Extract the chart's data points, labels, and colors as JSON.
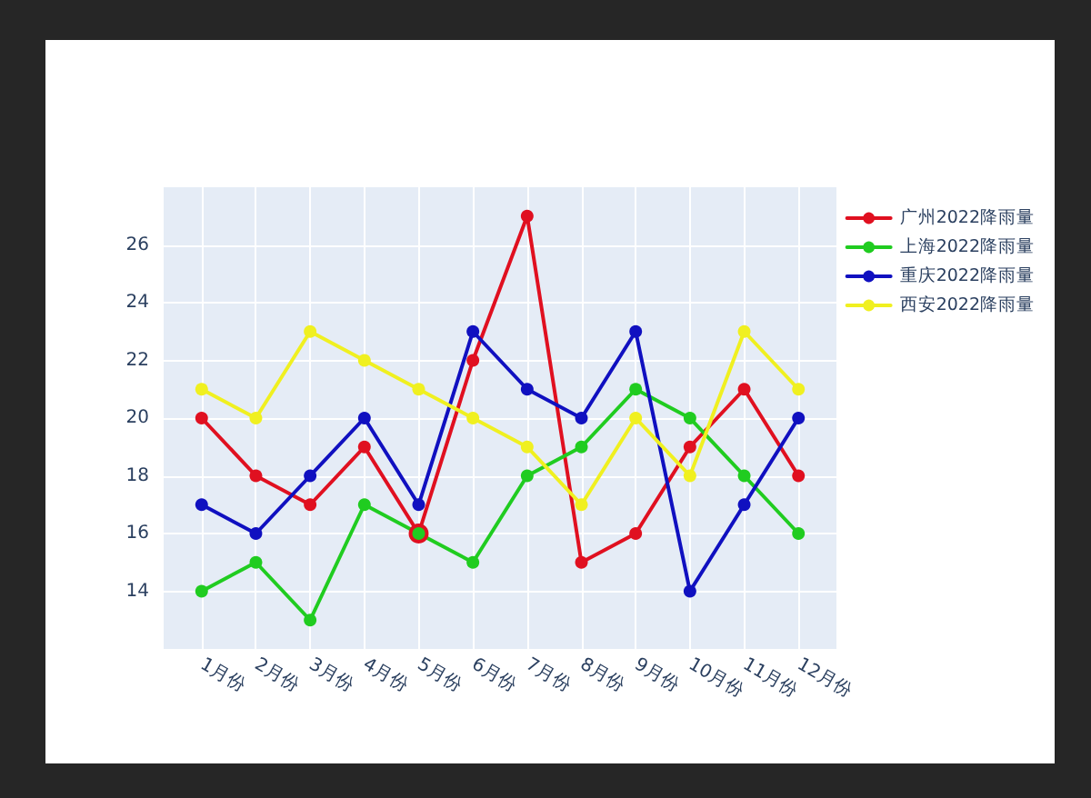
{
  "chart_data": {
    "type": "line",
    "categories": [
      "1月份",
      "2月份",
      "3月份",
      "4月份",
      "5月份",
      "6月份",
      "7月份",
      "8月份",
      "9月份",
      "10月份",
      "11月份",
      "12月份"
    ],
    "series": [
      {
        "name": "广州2022降雨量",
        "color": "#e01020",
        "values": [
          20,
          18,
          17,
          19,
          16,
          22,
          27,
          15,
          16,
          19,
          21,
          18
        ]
      },
      {
        "name": "上海2022降雨量",
        "color": "#20cc20",
        "values": [
          14,
          15,
          13,
          17,
          16,
          15,
          18,
          19,
          21,
          20,
          18,
          16
        ]
      },
      {
        "name": "重庆2022降雨量",
        "color": "#1010c0",
        "values": [
          17,
          16,
          18,
          20,
          17,
          23,
          21,
          20,
          23,
          14,
          17,
          20
        ]
      },
      {
        "name": "西安2022降雨量",
        "color": "#f0f020",
        "values": [
          21,
          20,
          23,
          22,
          21,
          20,
          19,
          17,
          20,
          18,
          23,
          21
        ]
      }
    ],
    "ylim": [
      12,
      28
    ],
    "yticks": [
      14,
      16,
      18,
      20,
      22,
      24,
      26
    ],
    "grid": true,
    "legend": "top right",
    "marker": "circle",
    "line_style": "solid"
  }
}
